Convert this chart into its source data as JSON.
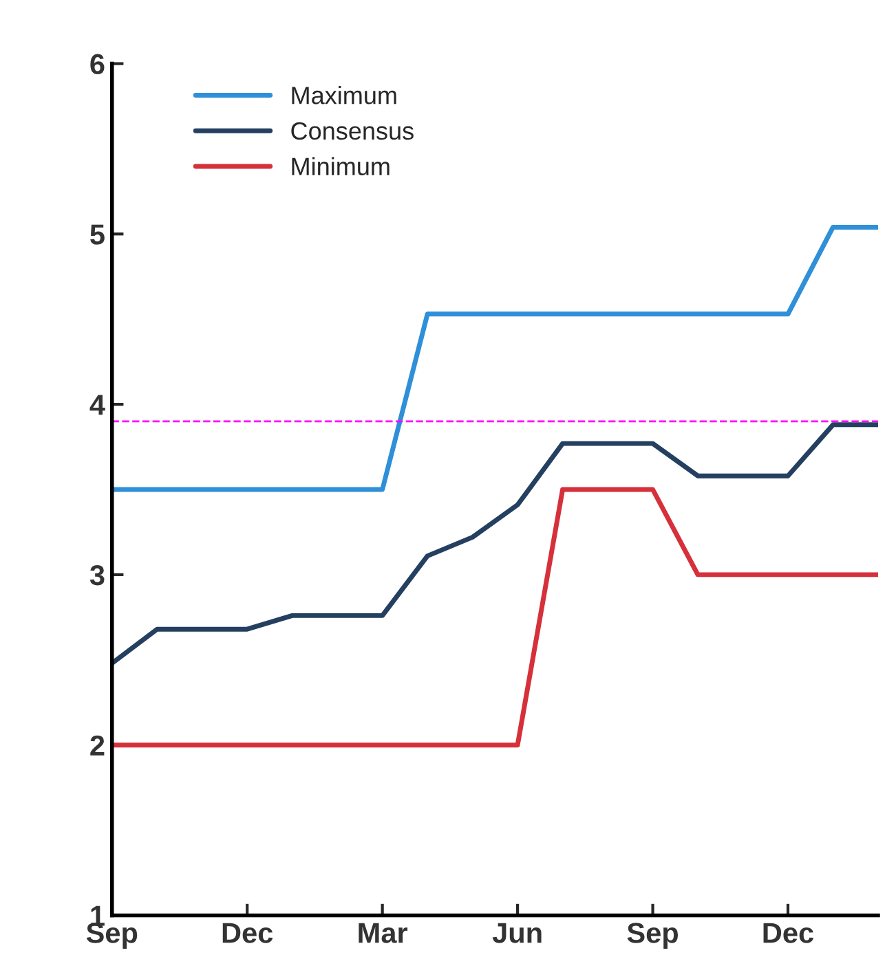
{
  "chart_data": {
    "type": "line",
    "categories": [
      "Sep",
      null,
      null,
      "Dec",
      null,
      null,
      "Mar",
      null,
      null,
      "Jun",
      null,
      null,
      "Sep",
      null,
      null,
      "Dec",
      null,
      null
    ],
    "series": [
      {
        "name": "Maximum",
        "color": "#2f8fd8",
        "values": [
          3.5,
          3.5,
          3.5,
          3.5,
          3.5,
          3.5,
          3.5,
          4.53,
          4.53,
          4.53,
          4.53,
          4.53,
          4.53,
          4.53,
          4.53,
          4.53,
          5.04,
          5.04
        ]
      },
      {
        "name": "Consensus",
        "color": "#243f60",
        "values": [
          2.48,
          2.68,
          2.68,
          2.68,
          2.76,
          2.76,
          2.76,
          3.11,
          3.22,
          3.41,
          3.77,
          3.77,
          3.77,
          3.58,
          3.58,
          3.58,
          3.88,
          3.88
        ]
      },
      {
        "name": "Minimum",
        "color": "#d6303a",
        "values": [
          2,
          2,
          2,
          2,
          2,
          2,
          2,
          2,
          2,
          2,
          3.5,
          3.5,
          3.5,
          3,
          3,
          3,
          3,
          3
        ]
      }
    ],
    "ylim": [
      1,
      6
    ],
    "yticks": [
      1,
      2,
      3,
      4,
      5,
      6
    ],
    "ref_lines": [
      {
        "axis": "y",
        "value": 3.9,
        "color": "#ff00ff",
        "line_style": "dashed"
      }
    ],
    "legend": "top left",
    "grid": false,
    "marker": "none",
    "line_style": "solid"
  }
}
